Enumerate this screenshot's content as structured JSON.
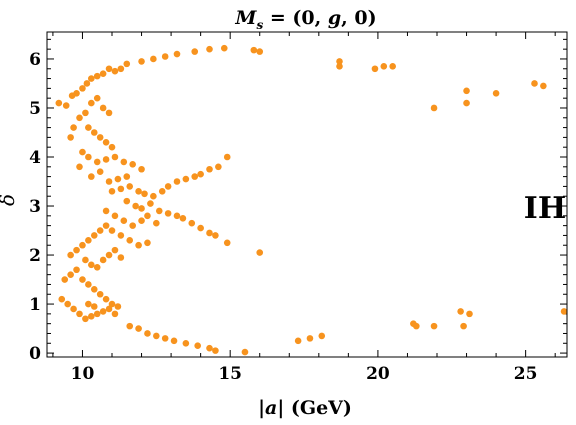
{
  "chart_data": {
    "type": "scatter",
    "title_parts": {
      "lhs": "M",
      "sub": "s",
      "rhs": " = (0, ",
      "var": "g",
      "tail": ", 0)"
    },
    "xlabel_parts": {
      "bar_l": "|",
      "var": "a",
      "bar_r": "|",
      "unit": " (GeV)"
    },
    "ylabel": "δ",
    "annotation": "IH",
    "xlim": [
      8.8,
      26.4
    ],
    "ylim": [
      -0.08,
      6.55
    ],
    "x_ticks": [
      10,
      15,
      20,
      25
    ],
    "x_tick_labels": [
      "10",
      "15",
      "20",
      "25"
    ],
    "y_ticks": [
      0,
      1,
      2,
      3,
      4,
      5,
      6
    ],
    "y_tick_labels": [
      "0",
      "1",
      "2",
      "3",
      "4",
      "5",
      "6"
    ],
    "grid": false,
    "marker_color": "#f7931e",
    "axis_color": "#000000",
    "points": [
      [
        9.2,
        5.1
      ],
      [
        9.45,
        5.05
      ],
      [
        9.65,
        5.25
      ],
      [
        9.8,
        5.3
      ],
      [
        10.0,
        5.4
      ],
      [
        10.15,
        5.5
      ],
      [
        10.3,
        5.6
      ],
      [
        10.5,
        5.65
      ],
      [
        10.7,
        5.7
      ],
      [
        10.9,
        5.8
      ],
      [
        11.1,
        5.75
      ],
      [
        11.3,
        5.8
      ],
      [
        9.6,
        4.4
      ],
      [
        9.7,
        4.6
      ],
      [
        9.9,
        4.8
      ],
      [
        10.1,
        4.9
      ],
      [
        10.3,
        5.1
      ],
      [
        10.5,
        5.2
      ],
      [
        10.7,
        5.0
      ],
      [
        10.9,
        4.9
      ],
      [
        10.2,
        4.6
      ],
      [
        10.4,
        4.5
      ],
      [
        10.6,
        4.4
      ],
      [
        10.8,
        4.3
      ],
      [
        11.0,
        4.2
      ],
      [
        10.0,
        4.1
      ],
      [
        10.2,
        4.0
      ],
      [
        10.5,
        3.9
      ],
      [
        10.8,
        3.95
      ],
      [
        11.1,
        4.0
      ],
      [
        11.4,
        3.9
      ],
      [
        11.7,
        3.85
      ],
      [
        12.0,
        3.75
      ],
      [
        9.9,
        3.8
      ],
      [
        10.3,
        3.6
      ],
      [
        10.6,
        3.7
      ],
      [
        10.9,
        3.5
      ],
      [
        11.2,
        3.55
      ],
      [
        11.5,
        3.6
      ],
      [
        11.0,
        3.3
      ],
      [
        11.3,
        3.35
      ],
      [
        11.6,
        3.4
      ],
      [
        11.9,
        3.3
      ],
      [
        12.1,
        3.25
      ],
      [
        12.4,
        3.2
      ],
      [
        12.7,
        3.3
      ],
      [
        12.9,
        3.4
      ],
      [
        13.2,
        3.5
      ],
      [
        13.5,
        3.55
      ],
      [
        13.8,
        3.6
      ],
      [
        14.0,
        3.65
      ],
      [
        14.3,
        3.75
      ],
      [
        14.6,
        3.8
      ],
      [
        14.9,
        4.0
      ],
      [
        11.5,
        3.1
      ],
      [
        11.8,
        3.0
      ],
      [
        12.0,
        2.95
      ],
      [
        12.3,
        3.05
      ],
      [
        12.6,
        2.9
      ],
      [
        12.9,
        2.85
      ],
      [
        13.2,
        2.8
      ],
      [
        13.4,
        2.75
      ],
      [
        13.7,
        2.65
      ],
      [
        14.0,
        2.55
      ],
      [
        14.3,
        2.45
      ],
      [
        14.5,
        2.4
      ],
      [
        14.9,
        2.25
      ],
      [
        16.0,
        2.05
      ],
      [
        10.8,
        2.9
      ],
      [
        11.1,
        2.8
      ],
      [
        11.4,
        2.7
      ],
      [
        11.7,
        2.6
      ],
      [
        12.0,
        2.7
      ],
      [
        12.2,
        2.8
      ],
      [
        12.5,
        2.65
      ],
      [
        11.0,
        2.5
      ],
      [
        11.3,
        2.4
      ],
      [
        11.6,
        2.3
      ],
      [
        11.9,
        2.2
      ],
      [
        12.2,
        2.25
      ],
      [
        9.6,
        2.0
      ],
      [
        9.8,
        2.1
      ],
      [
        10.0,
        2.2
      ],
      [
        10.2,
        2.3
      ],
      [
        10.4,
        2.4
      ],
      [
        10.6,
        2.5
      ],
      [
        10.8,
        2.6
      ],
      [
        10.1,
        1.9
      ],
      [
        10.3,
        1.8
      ],
      [
        10.5,
        1.75
      ],
      [
        10.7,
        1.9
      ],
      [
        10.9,
        2.0
      ],
      [
        11.1,
        2.1
      ],
      [
        11.3,
        1.95
      ],
      [
        9.4,
        1.5
      ],
      [
        9.6,
        1.6
      ],
      [
        9.8,
        1.7
      ],
      [
        10.0,
        1.5
      ],
      [
        10.2,
        1.4
      ],
      [
        10.4,
        1.3
      ],
      [
        10.6,
        1.2
      ],
      [
        10.8,
        1.1
      ],
      [
        11.0,
        1.0
      ],
      [
        11.2,
        0.95
      ],
      [
        9.3,
        1.1
      ],
      [
        9.5,
        1.0
      ],
      [
        9.7,
        0.9
      ],
      [
        9.9,
        0.8
      ],
      [
        10.1,
        0.7
      ],
      [
        10.3,
        0.75
      ],
      [
        10.5,
        0.8
      ],
      [
        10.7,
        0.85
      ],
      [
        10.9,
        0.9
      ],
      [
        11.1,
        0.8
      ],
      [
        10.2,
        1.0
      ],
      [
        10.4,
        0.95
      ],
      [
        11.6,
        0.55
      ],
      [
        11.9,
        0.5
      ],
      [
        12.2,
        0.4
      ],
      [
        12.5,
        0.35
      ],
      [
        12.8,
        0.3
      ],
      [
        13.1,
        0.25
      ],
      [
        13.5,
        0.2
      ],
      [
        13.9,
        0.15
      ],
      [
        14.3,
        0.1
      ],
      [
        14.5,
        0.05
      ],
      [
        15.5,
        0.02
      ],
      [
        11.5,
        5.9
      ],
      [
        12.0,
        5.95
      ],
      [
        12.4,
        6.0
      ],
      [
        12.8,
        6.05
      ],
      [
        13.2,
        6.1
      ],
      [
        13.8,
        6.15
      ],
      [
        14.3,
        6.2
      ],
      [
        14.8,
        6.22
      ],
      [
        15.8,
        6.18
      ],
      [
        16.0,
        6.15
      ],
      [
        17.3,
        0.25
      ],
      [
        17.7,
        0.3
      ],
      [
        18.1,
        0.35
      ],
      [
        18.7,
        5.95
      ],
      [
        18.7,
        5.85
      ],
      [
        19.9,
        5.8
      ],
      [
        20.2,
        5.85
      ],
      [
        20.5,
        5.85
      ],
      [
        21.2,
        0.6
      ],
      [
        21.3,
        0.55
      ],
      [
        21.9,
        0.55
      ],
      [
        21.9,
        5.0
      ],
      [
        22.8,
        0.85
      ],
      [
        22.9,
        0.55
      ],
      [
        23.0,
        5.35
      ],
      [
        23.0,
        5.1
      ],
      [
        23.1,
        0.8
      ],
      [
        24.0,
        5.3
      ],
      [
        25.3,
        5.5
      ],
      [
        25.6,
        5.45
      ],
      [
        26.3,
        0.85
      ]
    ]
  }
}
